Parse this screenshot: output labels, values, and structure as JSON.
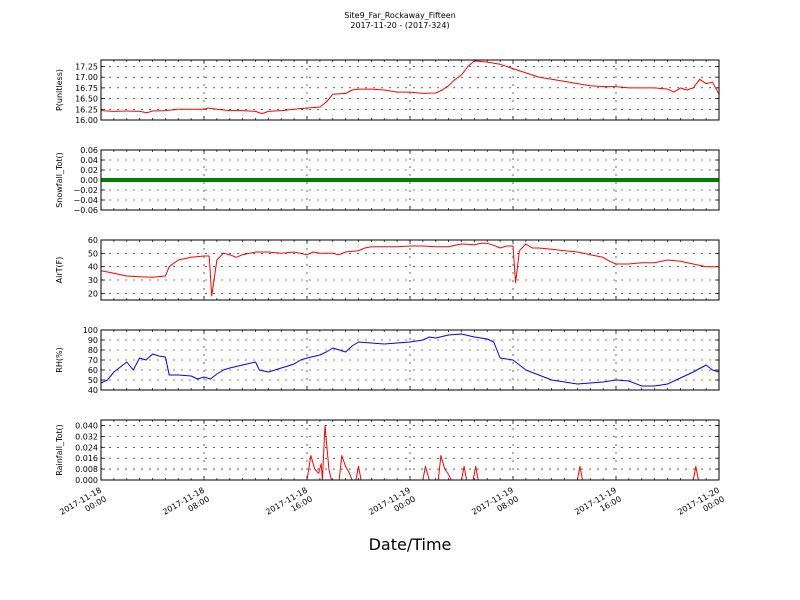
{
  "chart_data": {
    "type": "line",
    "title": "Site9_Far_Rockaway_Fifteen",
    "subtitle": "2017-11-20 - (2017-324)",
    "xlabel": "Date/Time",
    "xlim": [
      "2017-11-18 00:00",
      "2017-11-20 00:00"
    ],
    "x_ticks": [
      {
        "l1": "2017-11-18",
        "l2": "00:00"
      },
      {
        "l1": "2017-11-18",
        "l2": "08:00"
      },
      {
        "l1": "2017-11-18",
        "l2": "16:00"
      },
      {
        "l1": "2017-11-19",
        "l2": "00:00"
      },
      {
        "l1": "2017-11-19",
        "l2": "08:00"
      },
      {
        "l1": "2017-11-19",
        "l2": "16:00"
      },
      {
        "l1": "2017-11-20",
        "l2": "00:00"
      }
    ],
    "x_hours": [
      0,
      8,
      16,
      24,
      32,
      40,
      48
    ],
    "grid": true,
    "panels": [
      {
        "id": "p-unitless",
        "ylabel": "P(unitless)",
        "ylim": [
          16.0,
          17.4
        ],
        "yticks": [
          16.0,
          16.25,
          16.5,
          16.75,
          17.0,
          17.25
        ],
        "ytick_labels": [
          "16.00",
          "16.25",
          "16.50",
          "16.75",
          "17.00",
          "17.25"
        ],
        "color": "#ff0000",
        "points": [
          [
            0,
            16.22
          ],
          [
            1,
            16.2
          ],
          [
            2,
            16.21
          ],
          [
            3,
            16.2
          ],
          [
            3.6,
            16.17
          ],
          [
            4,
            16.21
          ],
          [
            5,
            16.22
          ],
          [
            6,
            16.25
          ],
          [
            7,
            16.25
          ],
          [
            8,
            16.25
          ],
          [
            8.3,
            16.28
          ],
          [
            9,
            16.25
          ],
          [
            10,
            16.22
          ],
          [
            11,
            16.22
          ],
          [
            12,
            16.2
          ],
          [
            12.5,
            16.15
          ],
          [
            13,
            16.2
          ],
          [
            14,
            16.22
          ],
          [
            15,
            16.25
          ],
          [
            16,
            16.28
          ],
          [
            17,
            16.3
          ],
          [
            17.5,
            16.42
          ],
          [
            18,
            16.6
          ],
          [
            19,
            16.62
          ],
          [
            19.5,
            16.7
          ],
          [
            20,
            16.72
          ],
          [
            21,
            16.72
          ],
          [
            22,
            16.7
          ],
          [
            23,
            16.65
          ],
          [
            24,
            16.65
          ],
          [
            25,
            16.62
          ],
          [
            26,
            16.63
          ],
          [
            26.5,
            16.7
          ],
          [
            27,
            16.8
          ],
          [
            27.5,
            16.95
          ],
          [
            28,
            17.05
          ],
          [
            28.5,
            17.25
          ],
          [
            29,
            17.38
          ],
          [
            30,
            17.35
          ],
          [
            31,
            17.3
          ],
          [
            32,
            17.2
          ],
          [
            33,
            17.1
          ],
          [
            34,
            17.0
          ],
          [
            35,
            16.95
          ],
          [
            36,
            16.9
          ],
          [
            37,
            16.85
          ],
          [
            38,
            16.8
          ],
          [
            39,
            16.78
          ],
          [
            40,
            16.78
          ],
          [
            41,
            16.75
          ],
          [
            42,
            16.75
          ],
          [
            43,
            16.75
          ],
          [
            44,
            16.72
          ],
          [
            44.5,
            16.65
          ],
          [
            45,
            16.75
          ],
          [
            45.5,
            16.7
          ],
          [
            46,
            16.75
          ],
          [
            46.5,
            16.95
          ],
          [
            47,
            16.85
          ],
          [
            47.5,
            16.88
          ],
          [
            48,
            16.6
          ]
        ]
      },
      {
        "id": "snowfall",
        "ylabel": "Snowfall_Tot()",
        "ylim": [
          -0.06,
          0.06
        ],
        "yticks": [
          -0.06,
          -0.04,
          -0.02,
          0.0,
          0.02,
          0.04,
          0.06
        ],
        "ytick_labels": [
          "−0.06",
          "−0.04",
          "−0.02",
          "0.00",
          "0.02",
          "0.04",
          "0.06"
        ],
        "color": "#008000",
        "constant": 0.0
      },
      {
        "id": "air-temp",
        "ylabel": "AirT(F)",
        "ylim": [
          15,
          60
        ],
        "yticks": [
          20,
          30,
          40,
          50,
          60
        ],
        "ytick_labels": [
          "20",
          "30",
          "40",
          "50",
          "60"
        ],
        "color": "#ff0000",
        "points": [
          [
            0,
            37
          ],
          [
            1,
            35
          ],
          [
            2,
            33
          ],
          [
            3,
            32.5
          ],
          [
            4,
            32
          ],
          [
            5,
            33
          ],
          [
            5.3,
            40
          ],
          [
            6,
            45
          ],
          [
            7,
            47
          ],
          [
            8,
            48
          ],
          [
            8.4,
            48
          ],
          [
            8.6,
            18
          ],
          [
            9,
            45
          ],
          [
            9.5,
            50
          ],
          [
            10,
            49
          ],
          [
            10.5,
            47
          ],
          [
            11,
            49
          ],
          [
            12,
            51
          ],
          [
            13,
            51
          ],
          [
            14,
            50
          ],
          [
            15,
            51
          ],
          [
            16,
            49
          ],
          [
            16.5,
            51
          ],
          [
            17,
            50
          ],
          [
            18,
            50
          ],
          [
            18.5,
            49
          ],
          [
            19,
            51
          ],
          [
            20,
            52
          ],
          [
            20.5,
            54
          ],
          [
            21,
            55
          ],
          [
            22,
            55
          ],
          [
            23,
            55
          ],
          [
            24,
            55.5
          ],
          [
            25,
            55.5
          ],
          [
            26,
            55
          ],
          [
            27,
            55
          ],
          [
            27.5,
            56
          ],
          [
            28,
            57
          ],
          [
            29,
            56.5
          ],
          [
            29.5,
            57.5
          ],
          [
            30,
            57.5
          ],
          [
            30.5,
            56
          ],
          [
            31,
            54
          ],
          [
            31.5,
            55.5
          ],
          [
            32,
            55.5
          ],
          [
            32.2,
            28
          ],
          [
            32.5,
            52
          ],
          [
            33,
            57
          ],
          [
            33.5,
            54
          ],
          [
            34,
            54
          ],
          [
            35,
            53
          ],
          [
            36,
            52
          ],
          [
            37,
            51
          ],
          [
            38,
            49
          ],
          [
            39,
            47
          ],
          [
            39.5,
            44
          ],
          [
            40,
            42
          ],
          [
            41,
            42
          ],
          [
            42,
            43
          ],
          [
            43,
            43
          ],
          [
            44,
            45
          ],
          [
            45,
            44
          ],
          [
            46,
            42
          ],
          [
            47,
            40
          ],
          [
            48,
            40
          ]
        ]
      },
      {
        "id": "rh",
        "ylabel": "RH(%)",
        "ylim": [
          40,
          100
        ],
        "yticks": [
          40,
          50,
          60,
          70,
          80,
          90,
          100
        ],
        "ytick_labels": [
          "40",
          "50",
          "60",
          "70",
          "80",
          "90",
          "100"
        ],
        "color": "#0000ff",
        "points": [
          [
            0,
            47
          ],
          [
            0.5,
            50
          ],
          [
            1,
            58
          ],
          [
            1.5,
            63
          ],
          [
            2,
            68
          ],
          [
            2.5,
            60
          ],
          [
            3,
            72
          ],
          [
            3.5,
            70
          ],
          [
            4,
            76
          ],
          [
            4.5,
            74
          ],
          [
            5,
            73
          ],
          [
            5.3,
            55
          ],
          [
            6,
            55
          ],
          [
            7,
            54
          ],
          [
            7.5,
            51
          ],
          [
            8,
            53
          ],
          [
            8.5,
            51
          ],
          [
            9,
            56
          ],
          [
            9.5,
            60
          ],
          [
            10,
            62
          ],
          [
            11,
            65
          ],
          [
            12,
            68
          ],
          [
            12.3,
            60
          ],
          [
            13,
            58
          ],
          [
            14,
            62
          ],
          [
            15,
            66
          ],
          [
            15.5,
            70
          ],
          [
            16,
            72
          ],
          [
            17,
            75
          ],
          [
            17.5,
            78
          ],
          [
            18,
            82
          ],
          [
            18.5,
            80
          ],
          [
            19,
            78
          ],
          [
            19.5,
            84
          ],
          [
            20,
            88
          ],
          [
            21,
            87
          ],
          [
            22,
            86
          ],
          [
            23,
            87
          ],
          [
            24,
            88
          ],
          [
            25,
            90
          ],
          [
            25.5,
            93
          ],
          [
            26,
            92
          ],
          [
            27,
            95
          ],
          [
            28,
            96
          ],
          [
            29,
            93
          ],
          [
            30,
            91
          ],
          [
            30.5,
            88
          ],
          [
            31,
            72
          ],
          [
            32,
            70
          ],
          [
            33,
            60
          ],
          [
            34,
            55
          ],
          [
            35,
            50
          ],
          [
            36,
            48
          ],
          [
            37,
            46
          ],
          [
            38,
            47
          ],
          [
            39,
            48
          ],
          [
            40,
            50
          ],
          [
            41,
            49
          ],
          [
            42,
            44
          ],
          [
            43,
            44
          ],
          [
            44,
            46
          ],
          [
            45,
            52
          ],
          [
            46,
            58
          ],
          [
            47,
            65
          ],
          [
            47.5,
            60
          ],
          [
            48,
            58
          ]
        ]
      },
      {
        "id": "rainfall",
        "ylabel": "Rainfall_Tot()",
        "ylim": [
          0,
          0.044
        ],
        "yticks": [
          0.0,
          0.008,
          0.016,
          0.024,
          0.032,
          0.04
        ],
        "ytick_labels": [
          "0.000",
          "0.008",
          "0.016",
          "0.024",
          "0.032",
          "0.040"
        ],
        "color": "#ff0000",
        "points": [
          [
            0,
            0
          ],
          [
            16,
            0
          ],
          [
            16.3,
            0.018
          ],
          [
            16.6,
            0.008
          ],
          [
            16.9,
            0.005
          ],
          [
            17.1,
            0.012
          ],
          [
            17.2,
            0
          ],
          [
            17.4,
            0.04
          ],
          [
            17.7,
            0.008
          ],
          [
            17.9,
            0
          ],
          [
            18.5,
            0
          ],
          [
            18.7,
            0.018
          ],
          [
            19,
            0.01
          ],
          [
            19.3,
            0.005
          ],
          [
            19.5,
            0
          ],
          [
            19.8,
            0
          ],
          [
            20,
            0.01
          ],
          [
            20.2,
            0
          ],
          [
            24,
            0
          ],
          [
            25,
            0
          ],
          [
            25.2,
            0.01
          ],
          [
            25.5,
            0
          ],
          [
            26.2,
            0
          ],
          [
            26.4,
            0.018
          ],
          [
            26.7,
            0.008
          ],
          [
            27,
            0.004
          ],
          [
            27.2,
            0
          ],
          [
            28,
            0
          ],
          [
            28.2,
            0.01
          ],
          [
            28.4,
            0
          ],
          [
            28.9,
            0
          ],
          [
            29.1,
            0.01
          ],
          [
            29.3,
            0
          ],
          [
            37,
            0
          ],
          [
            37.2,
            0.01
          ],
          [
            37.4,
            0
          ],
          [
            46,
            0
          ],
          [
            46.2,
            0.01
          ],
          [
            46.4,
            0
          ],
          [
            48,
            0
          ]
        ]
      }
    ]
  }
}
